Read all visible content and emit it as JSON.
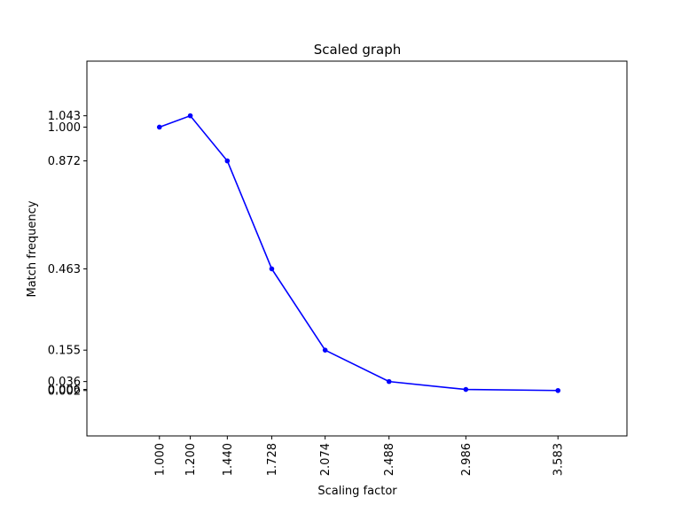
{
  "chart_data": {
    "type": "line",
    "title": "Scaled graph",
    "xlabel": "Scaling factor",
    "ylabel": "Match frequency",
    "grid": false,
    "xlim": [
      0.53,
      4.03
    ],
    "ylim": [
      -0.17,
      1.25
    ],
    "x_tick_labels": [
      "1.000",
      "1.200",
      "1.440",
      "1.728",
      "2.074",
      "2.488",
      "2.986",
      "3.583"
    ],
    "y_tick_labels": [
      "0.002",
      "0.006",
      "0.036",
      "0.155",
      "0.463",
      "0.872",
      "1.000",
      "1.043"
    ],
    "series": [
      {
        "color": "#0000ff",
        "marker": "circle",
        "x": [
          1.0,
          1.2,
          1.44,
          1.728,
          2.074,
          2.488,
          2.986,
          3.583
        ],
        "y": [
          1.0,
          1.043,
          0.872,
          0.463,
          0.155,
          0.036,
          0.006,
          0.002
        ]
      }
    ]
  }
}
